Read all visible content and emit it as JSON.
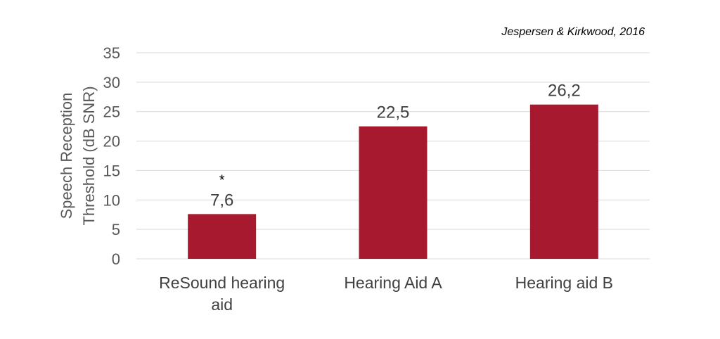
{
  "source_note": "Jespersen & Kirkwood, 2016",
  "chart_data": {
    "type": "bar",
    "categories": [
      [
        "ReSound hearing",
        "aid"
      ],
      [
        "Hearing Aid A"
      ],
      [
        "Hearing aid B"
      ]
    ],
    "values": [
      7.6,
      22.5,
      26.2
    ],
    "data_labels": [
      "7,6",
      "22,5",
      "26,2"
    ],
    "annotations": [
      "*",
      "",
      ""
    ],
    "ylabel_lines": [
      "Speech Reception",
      "Threshold (dB SNR)"
    ],
    "xlabel": "",
    "ylim": [
      0,
      35
    ],
    "yticks": [
      0,
      5,
      10,
      15,
      20,
      25,
      30,
      35
    ],
    "grid": true,
    "bar_color": "#a6192e"
  }
}
